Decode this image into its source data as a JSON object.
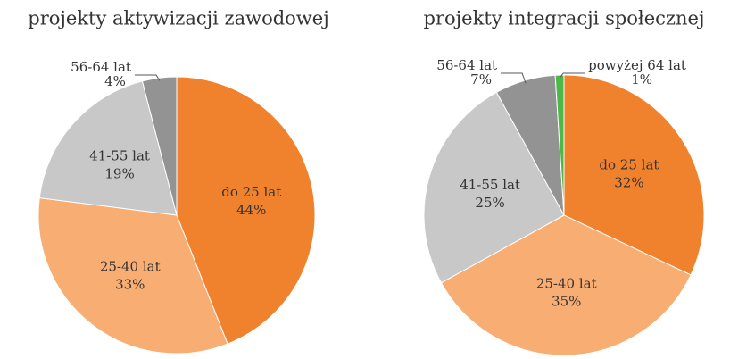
{
  "chart_data": [
    {
      "type": "pie",
      "title": "projekty aktywizacji zawodowej",
      "categories": [
        "do 25 lat",
        "25-40 lat",
        "41-55 lat",
        "56-64 lat"
      ],
      "values": [
        44,
        33,
        19,
        4
      ],
      "value_labels": [
        "44%",
        "33%",
        "19%",
        "4%"
      ],
      "colors": [
        "#f0822e",
        "#f8ad72",
        "#c8c8c8",
        "#939393"
      ]
    },
    {
      "type": "pie",
      "title": "projekty integracji społecznej",
      "categories": [
        "do 25 lat",
        "25-40 lat",
        "41-55 lat",
        "56-64 lat",
        "powyżej 64 lat"
      ],
      "values": [
        32,
        35,
        25,
        7,
        1
      ],
      "value_labels": [
        "32%",
        "35%",
        "25%",
        "7%",
        "1%"
      ],
      "colors": [
        "#f0822e",
        "#f8ad72",
        "#c8c8c8",
        "#939393",
        "#4cb848"
      ]
    }
  ]
}
